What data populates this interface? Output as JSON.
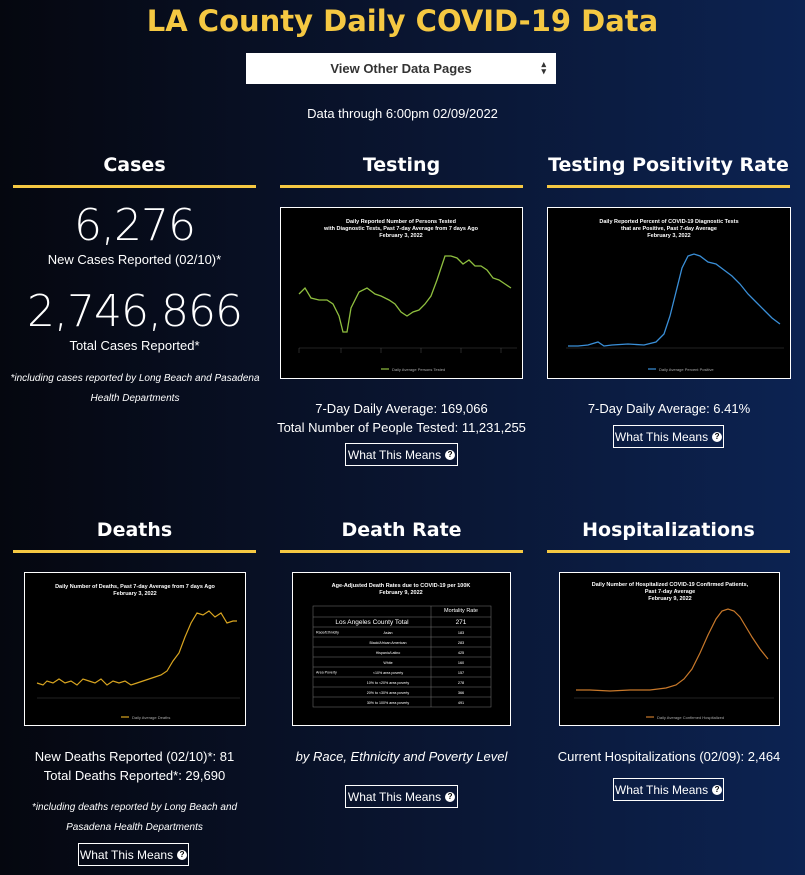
{
  "title": "LA County Daily COVID-19 Data",
  "nav": {
    "select_label": "View Other Data Pages",
    "chevron": "⌃⌄"
  },
  "data_through": "Data through 6:00pm 02/09/2022",
  "what_label": "What This Means",
  "q_icon": "?",
  "cases": {
    "heading": "Cases",
    "new_value": "6,276",
    "new_label": "New Cases Reported (02/10)*",
    "total_value": "2,746,866",
    "total_label": "Total Cases Reported*",
    "note_line1": "*including cases reported by Long Beach and Pasadena",
    "note_line2": "Health Departments"
  },
  "testing": {
    "heading": "Testing",
    "chart_title_1": "Daily Reported Number of Persons Tested",
    "chart_title_2": "with Diagnostic Tests, Past 7-day Average from 7 days Ago",
    "chart_title_3": "February 3, 2022",
    "legend": "Daily Average Persons Tested",
    "avg_line": "7-Day Daily Average: 169,066",
    "total_line": "Total Number of People Tested: 11,231,255",
    "color": "#8fbf3f"
  },
  "positivity": {
    "heading": "Testing Positivity Rate",
    "chart_title_1": "Daily Reported Percent of COVID-19 Diagnostic Tests",
    "chart_title_2": "that are Positive, Past 7-day Average",
    "chart_title_3": "February 3, 2022",
    "legend": "Daily Average Percent Positive",
    "avg_line": "7-Day Daily Average: 6.41%",
    "color": "#3a8fd8"
  },
  "deaths": {
    "heading": "Deaths",
    "chart_title_1": "Daily Number of Deaths, Past 7-day Average from 7 days Ago",
    "chart_title_2": "February 3, 2022",
    "legend": "Daily Average Deaths",
    "new_line": "New Deaths Reported (02/10)*: 81",
    "total_line": "Total Deaths Reported*: 29,690",
    "note_line1": "*including deaths reported by Long Beach and",
    "note_line2": "Pasadena Health Departments",
    "color": "#d9a520"
  },
  "death_rate": {
    "heading": "Death Rate",
    "chart_title_1": "Age-Adjusted Death Rates due to COVID-19 per 100K",
    "chart_title_2": "February 9, 2022",
    "col_header": "Mortality Rate",
    "rows": [
      {
        "group": "",
        "label": "Los Angeles County Total",
        "value": "271"
      },
      {
        "group": "Race/Ethnicity",
        "label": "Asian",
        "value": "183"
      },
      {
        "group": "",
        "label": "Black/African American",
        "value": "283"
      },
      {
        "group": "",
        "label": "Hispanic/Latino",
        "value": "425"
      },
      {
        "group": "",
        "label": "White",
        "value": "160"
      },
      {
        "group": "Area Poverty",
        "label": "<10% area poverty",
        "value": "157"
      },
      {
        "group": "",
        "label": "10% to <20% area poverty",
        "value": "278"
      },
      {
        "group": "",
        "label": "20% to <30% area poverty",
        "value": "366"
      },
      {
        "group": "",
        "label": "30% to 100% area poverty",
        "value": "491"
      }
    ],
    "subtitle": "by Race, Ethnicity and Poverty Level"
  },
  "hospital": {
    "heading": "Hospitalizations",
    "chart_title_1": "Daily Number of Hospitalized COVID-19 Confirmed Patients,",
    "chart_title_2": "Past 7-day Average",
    "chart_title_3": "February 9, 2022",
    "legend": "Daily Average Confirmed Hospitalized",
    "current_line": "Current Hospitalizations (02/09): 2,464",
    "color": "#c8782a"
  }
}
